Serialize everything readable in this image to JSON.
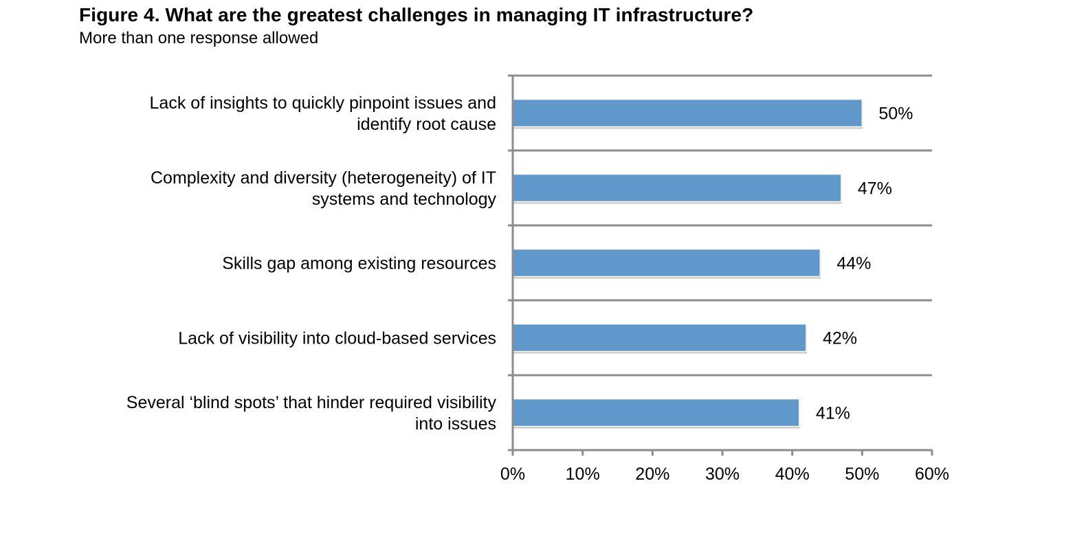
{
  "header": {
    "title": "Figure 4. What are the greatest challenges in managing IT infrastructure?",
    "subtitle": "More than one response allowed"
  },
  "colors": {
    "bar": "#6198cb",
    "axis": "#8c8c8c",
    "text": "#000000"
  },
  "chart_data": {
    "type": "bar",
    "orientation": "horizontal",
    "title": "Figure 4. What are the greatest challenges in managing IT infrastructure?",
    "subtitle": "More than one response allowed",
    "categories": [
      [
        "Lack of insights to quickly pinpoint issues and",
        "identify root cause"
      ],
      [
        "Complexity and diversity (heterogeneity) of IT",
        "systems and technology"
      ],
      [
        "Skills gap among existing resources"
      ],
      [
        "Lack of visibility into cloud-based services"
      ],
      [
        "Several ‘blind spots’ that hinder required visibility",
        "into issues"
      ]
    ],
    "values": [
      50,
      47,
      44,
      42,
      41
    ],
    "value_labels": [
      "50%",
      "47%",
      "44%",
      "42%",
      "41%"
    ],
    "xlim": [
      0,
      60
    ],
    "xticks": [
      0,
      10,
      20,
      30,
      40,
      50,
      60
    ],
    "xtick_labels": [
      "0%",
      "10%",
      "20%",
      "30%",
      "40%",
      "50%",
      "60%"
    ],
    "xlabel": "",
    "ylabel": "",
    "grid": "horizontal separators between categories",
    "legend": "none"
  }
}
